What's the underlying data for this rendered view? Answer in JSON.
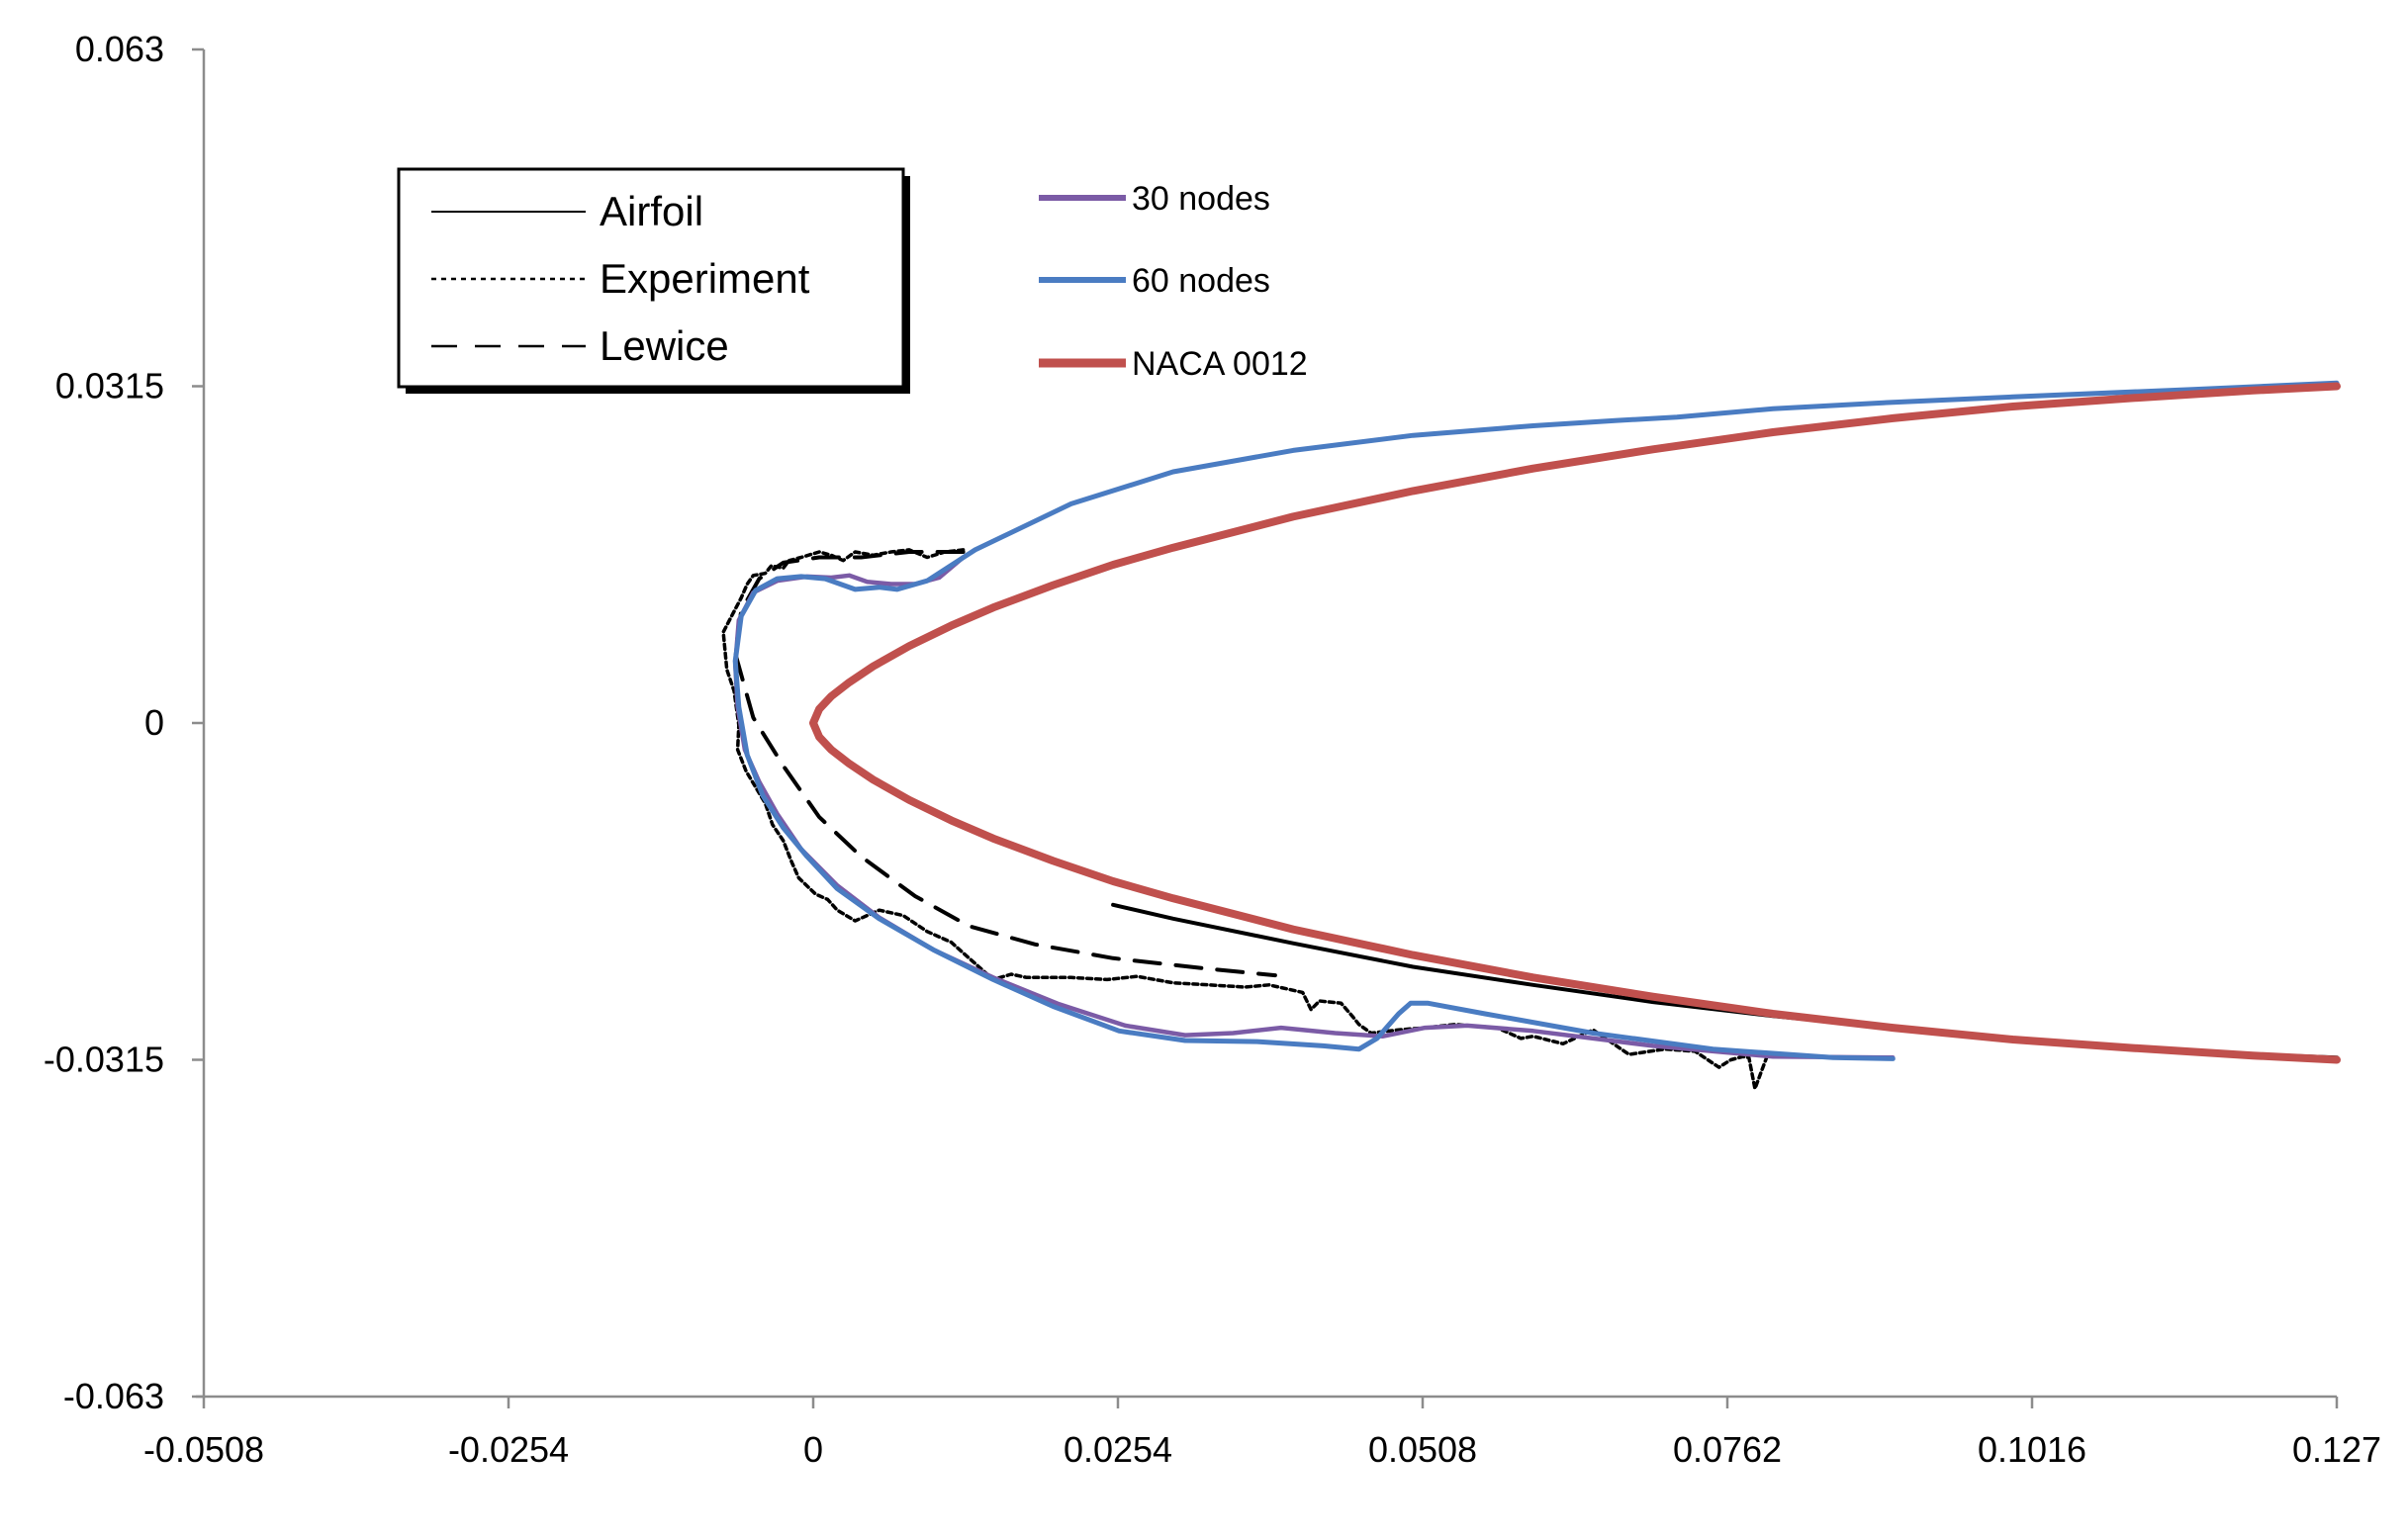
{
  "chart_data": {
    "type": "line",
    "title": "",
    "xlabel": "",
    "ylabel": "",
    "xlim": [
      -0.0508,
      0.127
    ],
    "ylim": [
      -0.063,
      0.063
    ],
    "x_ticks": [
      "-0.0508",
      "-0.0254",
      "0",
      "0.0254",
      "0.0508",
      "0.0762",
      "0.1016",
      "0.127"
    ],
    "y_ticks": [
      "0.063",
      "0.0315",
      "0",
      "-0.0315",
      "-0.063"
    ],
    "grid": false,
    "legend_scanned": {
      "placement": "top-left",
      "entries": [
        {
          "label": "Airfoil",
          "style": "solid"
        },
        {
          "label": "Experiment",
          "style": "dotted"
        },
        {
          "label": "Lewice",
          "style": "dashed"
        }
      ]
    },
    "legend_sim": {
      "placement": "top-center",
      "entries": [
        {
          "label": "30 nodes",
          "color": "#7B5BA6"
        },
        {
          "label": "60 nodes",
          "color": "#4A7CC2"
        },
        {
          "label": "NACA 0012",
          "color": "#C0504D"
        }
      ]
    },
    "series": [
      {
        "name": "Airfoil",
        "color": "#000000",
        "style": "solid",
        "x": [
          0.127,
          0.12,
          0.11,
          0.1,
          0.09,
          0.08,
          0.07,
          0.06,
          0.05,
          0.04,
          0.03,
          0.025
        ],
        "y": [
          -0.0313,
          -0.031,
          -0.0303,
          -0.0295,
          -0.0285,
          -0.0274,
          -0.0261,
          -0.0245,
          -0.0228,
          -0.0206,
          -0.0183,
          -0.017
        ]
      },
      {
        "name": "Experiment",
        "color": "#000000",
        "style": "dotted",
        "x": [
          0.0125,
          0.011,
          0.0095,
          0.008,
          0.0065,
          0.005,
          0.0035,
          0.0025,
          0.0015,
          0.0005,
          -0.001,
          -0.002,
          -0.0025,
          -0.0035,
          -0.004,
          -0.005,
          -0.0055,
          -0.006,
          -0.0068,
          -0.0075,
          -0.0072,
          -0.0066,
          -0.0062,
          -0.0063,
          -0.0056,
          -0.0048,
          -0.004,
          -0.0034,
          -0.0025,
          -0.0018,
          -0.0012,
          0.0002,
          0.0012,
          0.002,
          0.0035,
          0.0055,
          0.0075,
          0.0095,
          0.0115,
          0.0135,
          0.015,
          0.0165,
          0.0178,
          0.0215,
          0.0245,
          0.027,
          0.03,
          0.033,
          0.036,
          0.038,
          0.0408,
          0.0415,
          0.0422,
          0.044,
          0.045,
          0.0455,
          0.0465,
          0.0488,
          0.051,
          0.0535,
          0.057,
          0.059,
          0.06,
          0.0625,
          0.065,
          0.068,
          0.071,
          0.0735,
          0.0755,
          0.0765,
          0.0775,
          0.078,
          0.0785,
          0.0795
        ],
        "y": [
          0.0162,
          0.016,
          0.0155,
          0.0162,
          0.016,
          0.0157,
          0.016,
          0.0152,
          0.0157,
          0.016,
          0.0155,
          0.0152,
          0.0145,
          0.0147,
          0.014,
          0.0138,
          0.013,
          0.0117,
          0.01,
          0.0085,
          0.005,
          0.003,
          -0.0002,
          -0.0025,
          -0.0045,
          -0.006,
          -0.0075,
          -0.0095,
          -0.011,
          -0.013,
          -0.0145,
          -0.016,
          -0.0165,
          -0.0175,
          -0.0185,
          -0.0175,
          -0.018,
          -0.0195,
          -0.0205,
          -0.0225,
          -0.024,
          -0.0235,
          -0.0238,
          -0.0238,
          -0.024,
          -0.0237,
          -0.0243,
          -0.0245,
          -0.0247,
          -0.0245,
          -0.0252,
          -0.0268,
          -0.026,
          -0.0262,
          -0.0275,
          -0.0282,
          -0.029,
          -0.0287,
          -0.0285,
          -0.0282,
          -0.0285,
          -0.0295,
          -0.0293,
          -0.03,
          -0.0287,
          -0.031,
          -0.0305,
          -0.0307,
          -0.0322,
          -0.0315,
          -0.0312,
          -0.0313,
          -0.0342,
          -0.0312
        ]
      },
      {
        "name": "Lewice",
        "color": "#000000",
        "style": "dashed",
        "x": [
          0.0125,
          0.008,
          0.004,
          0.0005,
          -0.0025,
          -0.0045,
          -0.006,
          -0.0065,
          -0.005,
          -0.0025,
          0.0005,
          0.004,
          0.0085,
          0.013,
          0.0185,
          0.025,
          0.033,
          0.0385
        ],
        "y": [
          0.016,
          0.016,
          0.0155,
          0.0155,
          0.015,
          0.0135,
          0.0105,
          0.0065,
          0.0005,
          -0.004,
          -0.0088,
          -0.0125,
          -0.0162,
          -0.019,
          -0.0207,
          -0.022,
          -0.023,
          -0.0236
        ]
      },
      {
        "name": "30 nodes",
        "color": "#7B5BA6",
        "style": "solid",
        "x": [
          0.0125,
          0.0105,
          0.0085,
          0.0065,
          0.0045,
          0.003,
          0.0015,
          -0.0005,
          -0.003,
          -0.005,
          -0.0062,
          -0.0065,
          -0.0063,
          -0.0057,
          -0.0045,
          -0.003,
          -0.001,
          0.002,
          0.0055,
          0.01,
          0.015,
          0.0205,
          0.026,
          0.031,
          0.035,
          0.039,
          0.0435,
          0.0475,
          0.051,
          0.0545,
          0.06,
          0.07,
          0.08,
          0.09
        ],
        "y": [
          0.0155,
          0.0136,
          0.013,
          0.013,
          0.0132,
          0.0138,
          0.0136,
          0.0137,
          0.0133,
          0.0122,
          0.0096,
          0.0055,
          0.0015,
          -0.0025,
          -0.0055,
          -0.0085,
          -0.0118,
          -0.0152,
          -0.0182,
          -0.0212,
          -0.0238,
          -0.0263,
          -0.0283,
          -0.0292,
          -0.029,
          -0.0285,
          -0.029,
          -0.0293,
          -0.0285,
          -0.0283,
          -0.0288,
          -0.0302,
          -0.0312,
          -0.0313
        ]
      },
      {
        "name": "60 nodes",
        "color": "#4A7CC2",
        "style": "solid",
        "x": [
          0.127,
          0.115,
          0.1,
          0.09,
          0.08,
          0.072,
          0.067,
          0.06,
          0.05,
          0.04,
          0.03,
          0.0215,
          0.0135,
          0.0095,
          0.007,
          0.0055,
          0.0035,
          0.001,
          -0.001,
          -0.003,
          -0.0048,
          -0.006,
          -0.0065,
          -0.0062,
          -0.0055,
          -0.0042,
          -0.0025,
          -0.0005,
          0.002,
          0.0055,
          0.01,
          0.015,
          0.02,
          0.0255,
          0.031,
          0.037,
          0.0425,
          0.0455,
          0.047,
          0.0488,
          0.0498,
          0.0512,
          0.056,
          0.065,
          0.075,
          0.085,
          0.09
        ],
        "y": [
          0.0318,
          0.0312,
          0.0305,
          0.03,
          0.0294,
          0.0286,
          0.0283,
          0.0278,
          0.0269,
          0.0255,
          0.0235,
          0.0205,
          0.0162,
          0.0133,
          0.0125,
          0.0127,
          0.0125,
          0.0135,
          0.0137,
          0.0135,
          0.0124,
          0.01,
          0.0058,
          0.0015,
          -0.003,
          -0.0068,
          -0.0098,
          -0.0125,
          -0.0155,
          -0.0183,
          -0.0212,
          -0.024,
          -0.0265,
          -0.0288,
          -0.0297,
          -0.0298,
          -0.0302,
          -0.0305,
          -0.0295,
          -0.0272,
          -0.0262,
          -0.0262,
          -0.0272,
          -0.029,
          -0.0305,
          -0.0313,
          -0.0314
        ]
      },
      {
        "name": "NACA 0012",
        "color": "#C0504D",
        "style": "solid",
        "x": [
          0.127,
          0.12,
          0.11,
          0.1,
          0.09,
          0.08,
          0.07,
          0.06,
          0.05,
          0.04,
          0.03,
          0.025,
          0.02,
          0.015,
          0.0115,
          0.008,
          0.005,
          0.003,
          0.0015,
          0.0005,
          0.0,
          0.0005,
          0.0015,
          0.003,
          0.005,
          0.008,
          0.0115,
          0.015,
          0.02,
          0.025,
          0.03,
          0.04,
          0.05,
          0.06,
          0.07,
          0.08,
          0.09,
          0.1,
          0.11,
          0.12,
          0.127
        ],
        "y": [
          0.0315,
          0.0311,
          0.0304,
          0.0296,
          0.0285,
          0.0272,
          0.0256,
          0.0238,
          0.0217,
          0.0193,
          0.0164,
          0.0148,
          0.0129,
          0.0108,
          0.0091,
          0.0072,
          0.0053,
          0.0038,
          0.0025,
          0.0013,
          0.0,
          -0.0013,
          -0.0025,
          -0.0038,
          -0.0053,
          -0.0072,
          -0.0091,
          -0.0108,
          -0.0129,
          -0.0148,
          -0.0164,
          -0.0193,
          -0.0217,
          -0.0238,
          -0.0256,
          -0.0272,
          -0.0285,
          -0.0296,
          -0.0304,
          -0.0311,
          -0.0315
        ]
      }
    ]
  }
}
